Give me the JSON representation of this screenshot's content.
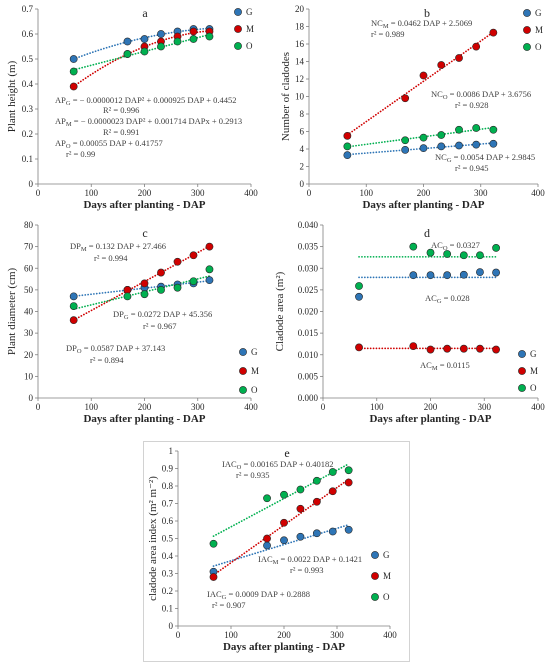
{
  "chart_data": [
    {
      "title": "a",
      "type": "scatter",
      "xlabel": "Days after planting - DAP",
      "ylabel": "Plant height (m)",
      "xlim": [
        0,
        400
      ],
      "ylim": [
        0,
        0.7
      ],
      "xticks": [
        "0",
        "100",
        "200",
        "300",
        "400"
      ],
      "yticks": [
        "0",
        "0.1",
        "0.2",
        "0.3",
        "0.4",
        "0.5",
        "0.6",
        "0.7"
      ],
      "grid": false,
      "legend": "top-right",
      "x": [
        67,
        168,
        200,
        231,
        262,
        292,
        322
      ],
      "series": [
        {
          "name": "G",
          "color": "#2e75b6",
          "trendline": "polynomial-2",
          "y": [
            0.5,
            0.57,
            0.58,
            0.6,
            0.61,
            0.62,
            0.62
          ]
        },
        {
          "name": "M",
          "color": "#d00000",
          "trendline": "polynomial-2",
          "y": [
            0.39,
            0.52,
            0.55,
            0.57,
            0.59,
            0.61,
            0.61
          ]
        },
        {
          "name": "O",
          "color": "#00b050",
          "trendline": "linear",
          "y": [
            0.45,
            0.52,
            0.53,
            0.55,
            0.57,
            0.58,
            0.59
          ]
        }
      ],
      "annotations": [
        {
          "lhs": "AP",
          "sub": "G",
          "rhs": " = − 0.0000012 DAP² + 0.000925 DAP + 0.4452",
          "fit": "R² = 0.996"
        },
        {
          "lhs": "AP",
          "sub": "M",
          "rhs": " = − 0.0000023 DAP² + 0.001714 DAPx + 0.2913",
          "fit": "R² = 0.991"
        },
        {
          "lhs": "AP",
          "sub": "O",
          "rhs": " = 0.00055 DAP + 0.41757",
          "fit": "r² = 0.99"
        }
      ]
    },
    {
      "title": "b",
      "type": "scatter",
      "xlabel": "Days after planting - DAP",
      "ylabel": "Number of cladodes",
      "xlim": [
        0,
        400
      ],
      "ylim": [
        0,
        20
      ],
      "xticks": [
        "0",
        "100",
        "200",
        "300",
        "400"
      ],
      "yticks": [
        "0",
        "2",
        "4",
        "6",
        "8",
        "10",
        "12",
        "14",
        "16",
        "18",
        "20"
      ],
      "grid": false,
      "legend": "top-right",
      "x": [
        67,
        168,
        200,
        231,
        262,
        292,
        322
      ],
      "series": [
        {
          "name": "G",
          "color": "#2e75b6",
          "trendline": "linear",
          "y": [
            3.3,
            3.9,
            4.1,
            4.3,
            4.4,
            4.5,
            4.6
          ]
        },
        {
          "name": "M",
          "color": "#d00000",
          "trendline": "linear",
          "y": [
            5.5,
            9.8,
            12.4,
            13.6,
            14.4,
            15.7,
            17.3
          ]
        },
        {
          "name": "O",
          "color": "#00b050",
          "trendline": "linear",
          "y": [
            4.3,
            5.0,
            5.3,
            5.6,
            6.2,
            6.4,
            6.2
          ]
        }
      ],
      "annotations": [
        {
          "lhs": "NC",
          "sub": "M",
          "rhs": " = 0.0462 DAP + 2.5069",
          "fit": "r² = 0.989"
        },
        {
          "lhs": "NC",
          "sub": "O",
          "rhs": " = 0.0086 DAP + 3.6756",
          "fit": "r² = 0.928"
        },
        {
          "lhs": "NC",
          "sub": "G",
          "rhs": " = 0.0054 DAP + 2.9845",
          "fit": "r² = 0.945"
        }
      ]
    },
    {
      "title": "c",
      "type": "scatter",
      "xlabel": "Days after planting - DAP",
      "ylabel": "Plant diameter (cm)",
      "xlim": [
        0,
        400
      ],
      "ylim": [
        0,
        80
      ],
      "xticks": [
        "0",
        "100",
        "200",
        "300",
        "400"
      ],
      "yticks": [
        "0",
        "10",
        "20",
        "30",
        "40",
        "50",
        "60",
        "70",
        "80"
      ],
      "grid": false,
      "legend": "bottom-right",
      "x": [
        67,
        168,
        200,
        231,
        262,
        292,
        322
      ],
      "series": [
        {
          "name": "G",
          "color": "#2e75b6",
          "trendline": "linear",
          "y": [
            47,
            50,
            51,
            51.5,
            52.5,
            53,
            54.5
          ]
        },
        {
          "name": "M",
          "color": "#d00000",
          "trendline": "linear",
          "y": [
            36,
            50,
            53,
            58,
            63,
            66,
            70
          ]
        },
        {
          "name": "O",
          "color": "#00b050",
          "trendline": "linear",
          "y": [
            42.5,
            47,
            48,
            50,
            51,
            54,
            59.5
          ]
        }
      ],
      "annotations": [
        {
          "lhs": "DP",
          "sub": "M",
          "rhs": " = 0.132 DAP + 27.466",
          "fit": "r² = 0.994"
        },
        {
          "lhs": "DP",
          "sub": "G",
          "rhs": " = 0.0272 DAP + 45.356",
          "fit": "r² = 0.967"
        },
        {
          "lhs": "DP",
          "sub": "O",
          "rhs": " = 0.0587 DAP + 37.143",
          "fit": "r² = 0.894"
        }
      ]
    },
    {
      "title": "d",
      "type": "scatter",
      "xlabel": "Days after planting - DAP",
      "ylabel": "Cladode area (m²)",
      "xlim": [
        0,
        400
      ],
      "ylim": [
        0,
        0.04
      ],
      "xticks": [
        "0",
        "100",
        "200",
        "300",
        "400"
      ],
      "yticks": [
        "0.000",
        "0.005",
        "0.010",
        "0.015",
        "0.020",
        "0.025",
        "0.030",
        "0.035",
        "0.040"
      ],
      "grid": false,
      "legend": "bottom-right",
      "x": [
        67,
        168,
        200,
        231,
        262,
        292,
        322
      ],
      "series": [
        {
          "name": "G",
          "color": "#2e75b6",
          "trendline": "mean",
          "y": [
            0.0234,
            0.0284,
            0.0284,
            0.0284,
            0.0285,
            0.0291,
            0.029
          ]
        },
        {
          "name": "M",
          "color": "#d00000",
          "trendline": "mean",
          "y": [
            0.0117,
            0.012,
            0.0112,
            0.0114,
            0.0114,
            0.0114,
            0.0112
          ]
        },
        {
          "name": "O",
          "color": "#00b050",
          "trendline": "mean",
          "y": [
            0.0259,
            0.035,
            0.0336,
            0.0333,
            0.033,
            0.033,
            0.0347
          ]
        }
      ],
      "annotations": [
        {
          "lhs": "AC",
          "sub": "O",
          "rhs": " = 0.0327"
        },
        {
          "lhs": "AC",
          "sub": "G",
          "rhs": " = 0.028"
        },
        {
          "lhs": "AC",
          "sub": "M",
          "rhs": " = 0.0115"
        }
      ]
    },
    {
      "title": "e",
      "type": "scatter",
      "xlabel": "Days after planting - DAP",
      "ylabel": "cladode area index (m² m⁻²)",
      "xlim": [
        0,
        400
      ],
      "ylim": [
        0,
        1
      ],
      "xticks": [
        "0",
        "100",
        "200",
        "300",
        "400"
      ],
      "yticks": [
        "0",
        "0.1",
        "0.2",
        "0.3",
        "0.4",
        "0.5",
        "0.6",
        "0.7",
        "0.8",
        "0.9",
        "1"
      ],
      "grid": false,
      "legend": "bottom-right",
      "x": [
        67,
        168,
        200,
        231,
        262,
        292,
        322
      ],
      "series": [
        {
          "name": "G",
          "color": "#2e75b6",
          "trendline": "linear",
          "y": [
            0.31,
            0.46,
            0.49,
            0.51,
            0.53,
            0.54,
            0.55
          ]
        },
        {
          "name": "M",
          "color": "#d00000",
          "trendline": "linear",
          "y": [
            0.28,
            0.5,
            0.59,
            0.67,
            0.71,
            0.77,
            0.82
          ]
        },
        {
          "name": "O",
          "color": "#00b050",
          "trendline": "linear",
          "y": [
            0.47,
            0.73,
            0.75,
            0.78,
            0.83,
            0.88,
            0.89
          ]
        }
      ],
      "annotations": [
        {
          "lhs": "IAC",
          "sub": "O",
          "rhs": " = 0.00165 DAP + 0.40182",
          "fit": "r² = 0.935"
        },
        {
          "lhs": "IAC",
          "sub": "M",
          "rhs": " = 0.0022 DAP + 0.1421",
          "fit": "r² = 0.993"
        },
        {
          "lhs": "IAC",
          "sub": "G",
          "rhs": " = 0.0009 DAP + 0.2888",
          "fit": "r² = 0.907"
        }
      ]
    }
  ]
}
